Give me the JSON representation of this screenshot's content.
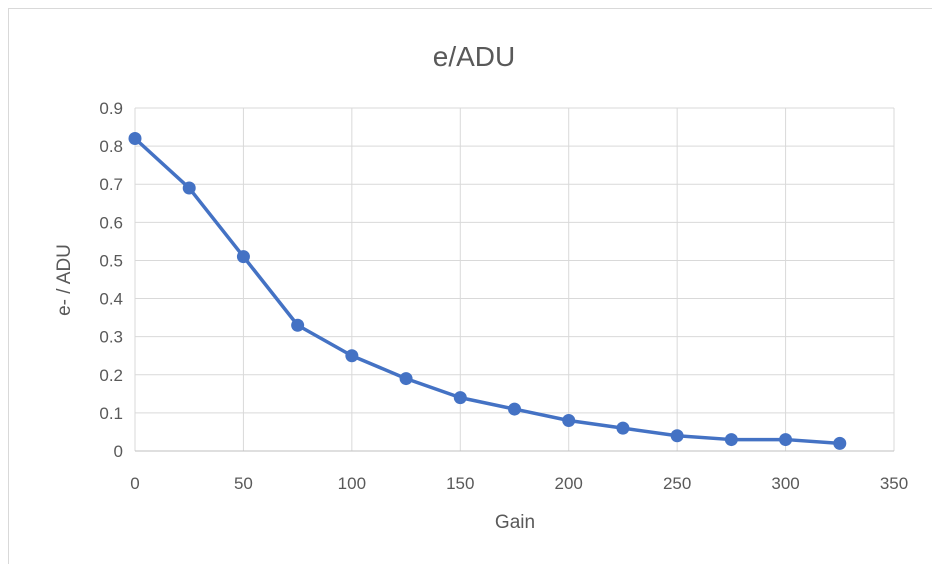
{
  "chart_data": {
    "type": "line",
    "title": "e/ADU",
    "xlabel": "Gain",
    "ylabel": "e- / ADU",
    "xlim": [
      0,
      350
    ],
    "ylim": [
      0,
      0.9
    ],
    "xticks": [
      "0",
      "50",
      "100",
      "150",
      "200",
      "250",
      "300",
      "350"
    ],
    "yticks": [
      "0",
      "0.1",
      "0.2",
      "0.3",
      "0.4",
      "0.5",
      "0.6",
      "0.7",
      "0.8",
      "0.9"
    ],
    "grid": true,
    "series": [
      {
        "color": "#4472c4",
        "marker": "circle",
        "x": [
          0,
          25,
          50,
          75,
          100,
          125,
          150,
          175,
          200,
          225,
          250,
          275,
          300,
          325
        ],
        "y": [
          0.82,
          0.69,
          0.51,
          0.33,
          0.25,
          0.19,
          0.14,
          0.11,
          0.08,
          0.06,
          0.04,
          0.03,
          0.03,
          0.02
        ]
      }
    ]
  }
}
